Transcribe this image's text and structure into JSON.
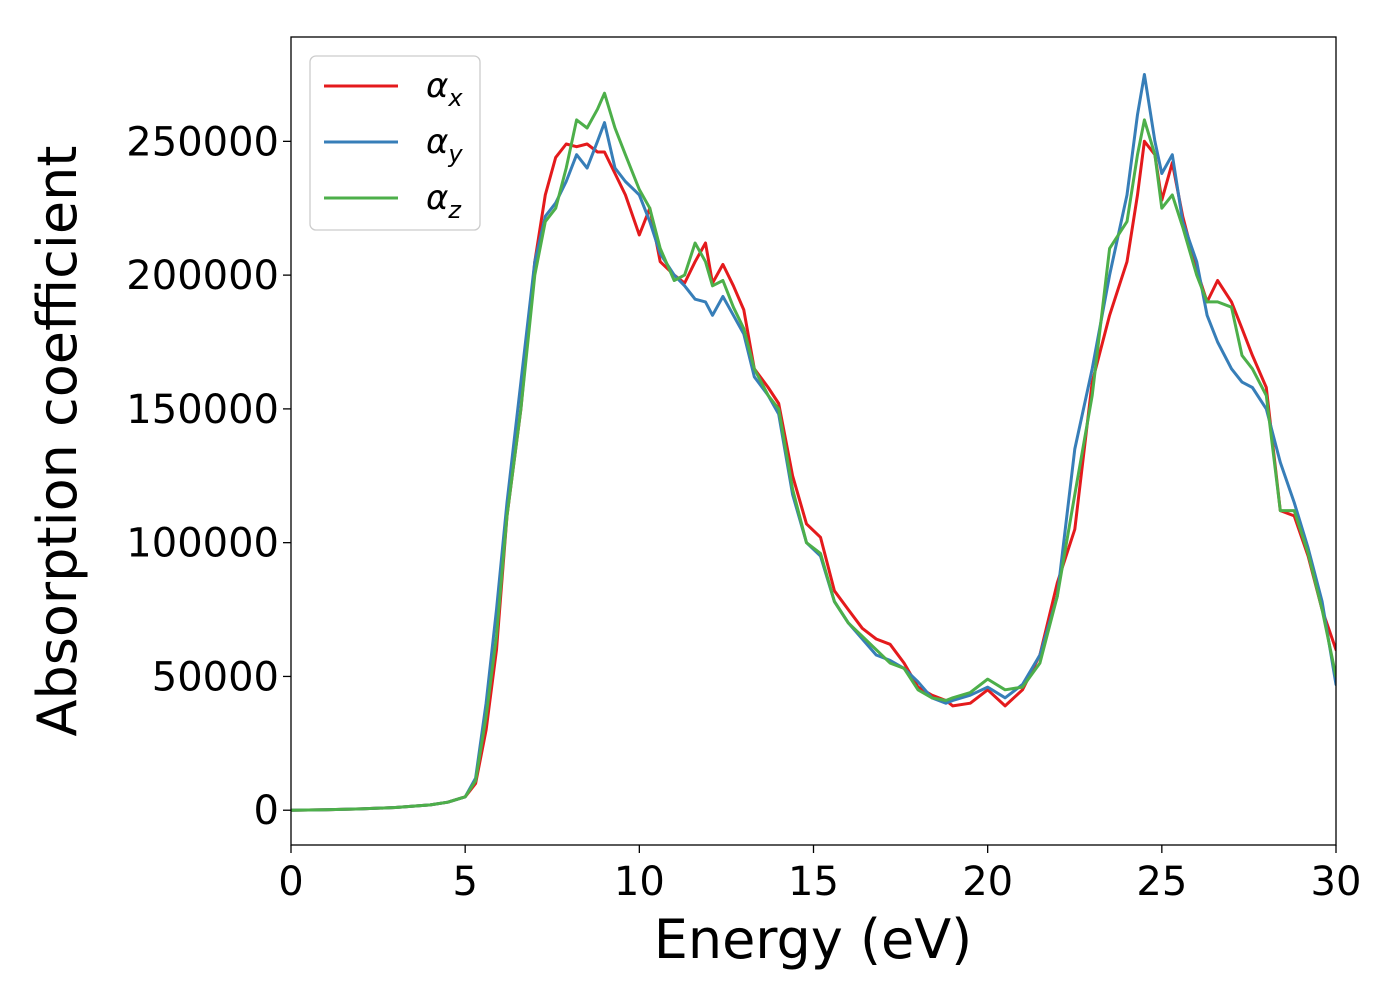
{
  "chart_data": {
    "type": "line",
    "title": "",
    "xlabel": "Energy (eV)",
    "ylabel": "Absorption coefficient",
    "xlim": [
      0,
      30
    ],
    "ylim": [
      -13000,
      289000
    ],
    "xticks": [
      0,
      5,
      10,
      15,
      20,
      25,
      30
    ],
    "xtick_labels": [
      "0",
      "5",
      "10",
      "15",
      "20",
      "25",
      "30"
    ],
    "yticks": [
      0,
      50000,
      100000,
      150000,
      200000,
      250000
    ],
    "ytick_labels": [
      "0",
      "50000",
      "100000",
      "150000",
      "200000",
      "250000"
    ],
    "grid": false,
    "legend_position": "top-left",
    "colors": {
      "alpha_x": "#e41a1c",
      "alpha_y": "#377eb8",
      "alpha_z": "#4daf4a"
    },
    "series": [
      {
        "name": "α_x",
        "base": "α",
        "sub": "x",
        "color": "#e41a1c",
        "x": [
          0,
          1,
          2,
          3,
          4,
          4.5,
          5,
          5.3,
          5.6,
          5.9,
          6.2,
          6.6,
          7.0,
          7.3,
          7.6,
          7.9,
          8.2,
          8.5,
          8.8,
          9.0,
          9.3,
          9.6,
          10.0,
          10.3,
          10.6,
          11.0,
          11.3,
          11.6,
          11.9,
          12.1,
          12.4,
          12.7,
          13.0,
          13.3,
          13.7,
          14.0,
          14.4,
          14.8,
          15.2,
          15.6,
          16.0,
          16.4,
          16.8,
          17.2,
          17.6,
          18.0,
          18.4,
          18.8,
          19.0,
          19.5,
          20.0,
          20.5,
          21.0,
          21.5,
          22.0,
          22.5,
          23.0,
          23.5,
          24.0,
          24.3,
          24.5,
          24.8,
          25.0,
          25.3,
          25.6,
          26.0,
          26.3,
          26.6,
          27.0,
          27.3,
          27.6,
          28.0,
          28.4,
          28.8,
          29.2,
          29.6,
          30.0
        ],
        "y": [
          0,
          200,
          500,
          1000,
          2000,
          3000,
          5000,
          10000,
          30000,
          60000,
          110000,
          150000,
          205000,
          230000,
          244000,
          249000,
          248000,
          249000,
          246000,
          246000,
          238000,
          230000,
          215000,
          225000,
          205000,
          200000,
          197000,
          205000,
          212000,
          197000,
          204000,
          196000,
          187000,
          165000,
          158000,
          152000,
          125000,
          107000,
          102000,
          82000,
          75000,
          68000,
          64000,
          62000,
          55000,
          46000,
          43000,
          41000,
          39000,
          40000,
          45000,
          39000,
          45000,
          58000,
          85000,
          105000,
          160000,
          185000,
          205000,
          230000,
          250000,
          245000,
          228000,
          242000,
          222000,
          202000,
          190000,
          198000,
          190000,
          180000,
          170000,
          158000,
          112000,
          110000,
          95000,
          75000,
          60000
        ]
      },
      {
        "name": "α_y",
        "base": "α",
        "sub": "y",
        "color": "#377eb8",
        "x": [
          0,
          1,
          2,
          3,
          4,
          4.5,
          5,
          5.3,
          5.6,
          5.9,
          6.2,
          6.6,
          7.0,
          7.3,
          7.6,
          7.9,
          8.2,
          8.5,
          8.8,
          9.0,
          9.3,
          9.6,
          10.0,
          10.3,
          10.6,
          11.0,
          11.3,
          11.6,
          11.9,
          12.1,
          12.4,
          12.7,
          13.0,
          13.3,
          13.7,
          14.0,
          14.4,
          14.8,
          15.2,
          15.6,
          16.0,
          16.4,
          16.8,
          17.2,
          17.6,
          18.0,
          18.4,
          18.8,
          19.0,
          19.5,
          20.0,
          20.5,
          21.0,
          21.5,
          22.0,
          22.5,
          23.0,
          23.5,
          24.0,
          24.3,
          24.5,
          24.8,
          25.0,
          25.3,
          25.6,
          26.0,
          26.3,
          26.6,
          27.0,
          27.3,
          27.6,
          28.0,
          28.4,
          28.8,
          29.2,
          29.6,
          30.0
        ],
        "y": [
          0,
          200,
          500,
          1000,
          2000,
          3000,
          5000,
          12000,
          40000,
          75000,
          115000,
          160000,
          205000,
          222000,
          227000,
          235000,
          245000,
          240000,
          250000,
          257000,
          240000,
          235000,
          230000,
          220000,
          208000,
          200000,
          196000,
          191000,
          190000,
          185000,
          192000,
          185000,
          178000,
          162000,
          155000,
          148000,
          118000,
          100000,
          95000,
          78000,
          70000,
          64000,
          58000,
          56000,
          53000,
          48000,
          42000,
          40000,
          41000,
          43000,
          46000,
          42000,
          47000,
          58000,
          80000,
          135000,
          165000,
          200000,
          230000,
          260000,
          275000,
          250000,
          238000,
          245000,
          220000,
          205000,
          185000,
          175000,
          165000,
          160000,
          158000,
          150000,
          130000,
          115000,
          98000,
          78000,
          47000
        ]
      },
      {
        "name": "α_z",
        "base": "α",
        "sub": "z",
        "color": "#4daf4a",
        "x": [
          0,
          1,
          2,
          3,
          4,
          4.5,
          5,
          5.3,
          5.6,
          5.9,
          6.2,
          6.6,
          7.0,
          7.3,
          7.6,
          7.9,
          8.2,
          8.5,
          8.8,
          9.0,
          9.3,
          9.6,
          10.0,
          10.3,
          10.6,
          11.0,
          11.3,
          11.6,
          11.9,
          12.1,
          12.4,
          12.7,
          13.0,
          13.3,
          13.7,
          14.0,
          14.4,
          14.8,
          15.2,
          15.6,
          16.0,
          16.4,
          16.8,
          17.2,
          17.6,
          18.0,
          18.4,
          18.8,
          19.0,
          19.5,
          20.0,
          20.5,
          21.0,
          21.5,
          22.0,
          22.5,
          23.0,
          23.5,
          24.0,
          24.3,
          24.5,
          24.8,
          25.0,
          25.3,
          25.6,
          26.0,
          26.3,
          26.6,
          27.0,
          27.3,
          27.6,
          28.0,
          28.4,
          28.8,
          29.2,
          29.6,
          30.0
        ],
        "y": [
          0,
          200,
          500,
          1000,
          2000,
          3000,
          5000,
          11000,
          35000,
          65000,
          110000,
          150000,
          200000,
          220000,
          225000,
          240000,
          258000,
          255000,
          262000,
          268000,
          255000,
          245000,
          232000,
          225000,
          210000,
          198000,
          200000,
          212000,
          205000,
          196000,
          198000,
          188000,
          180000,
          165000,
          155000,
          150000,
          120000,
          100000,
          96000,
          78000,
          70000,
          65000,
          60000,
          55000,
          53000,
          45000,
          42000,
          41000,
          42000,
          44000,
          49000,
          45000,
          46000,
          55000,
          80000,
          118000,
          155000,
          210000,
          220000,
          245000,
          258000,
          245000,
          225000,
          230000,
          218000,
          200000,
          190000,
          190000,
          188000,
          170000,
          165000,
          155000,
          112000,
          112000,
          96000,
          75000,
          50000
        ]
      }
    ]
  }
}
